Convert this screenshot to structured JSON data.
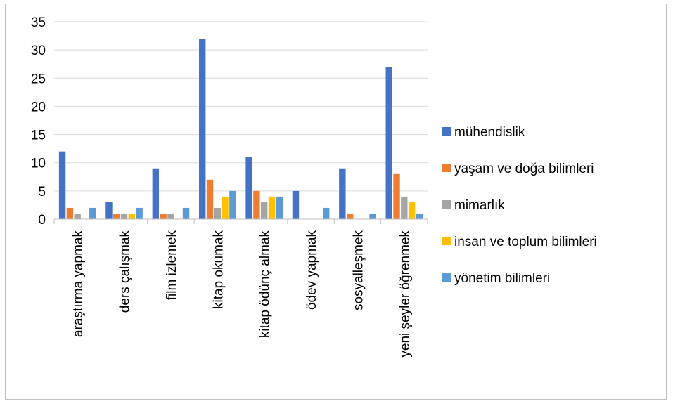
{
  "chart_data": {
    "type": "bar",
    "categories": [
      "araştırma yapmak",
      "ders çalışmak",
      "film izlemek",
      "kitap okumak",
      "kitap ödünç almak",
      "ödev yapmak",
      "sosyalleşmek",
      "yeni şeyler öğrenmek"
    ],
    "series": [
      {
        "name": "mühendislik",
        "color": "#4472C4",
        "values": [
          12,
          3,
          9,
          32,
          11,
          5,
          9,
          27
        ]
      },
      {
        "name": "yaşam ve doğa bilimleri",
        "color": "#ED7D31",
        "values": [
          2,
          1,
          1,
          7,
          5,
          0,
          1,
          8
        ]
      },
      {
        "name": "mimarlık",
        "color": "#A5A5A5",
        "values": [
          1,
          1,
          1,
          2,
          3,
          0,
          0,
          4
        ]
      },
      {
        "name": "insan ve toplum bilimleri",
        "color": "#FFC000",
        "values": [
          0,
          1,
          0,
          4,
          4,
          0,
          0,
          3
        ]
      },
      {
        "name": "yönetim bilimleri",
        "color": "#5B9BD5",
        "values": [
          2,
          2,
          2,
          5,
          4,
          2,
          1,
          1
        ]
      }
    ],
    "yticks": [
      "0",
      "5",
      "10",
      "15",
      "20",
      "25",
      "30",
      "35"
    ],
    "ylim": [
      0,
      35
    ],
    "grid": true,
    "legend": "right"
  }
}
